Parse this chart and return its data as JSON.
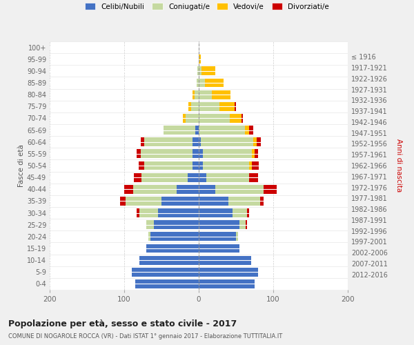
{
  "age_groups": [
    "0-4",
    "5-9",
    "10-14",
    "15-19",
    "20-24",
    "25-29",
    "30-34",
    "35-39",
    "40-44",
    "45-49",
    "50-54",
    "55-59",
    "60-64",
    "65-69",
    "70-74",
    "75-79",
    "80-84",
    "85-89",
    "90-94",
    "95-99",
    "100+"
  ],
  "birth_years": [
    "2012-2016",
    "2007-2011",
    "2002-2006",
    "1997-2001",
    "1992-1996",
    "1987-1991",
    "1982-1986",
    "1977-1981",
    "1972-1976",
    "1967-1971",
    "1962-1966",
    "1957-1961",
    "1952-1956",
    "1947-1951",
    "1942-1946",
    "1937-1941",
    "1932-1936",
    "1927-1931",
    "1922-1926",
    "1917-1921",
    "≤ 1916"
  ],
  "males": {
    "celibi": [
      85,
      90,
      80,
      70,
      65,
      60,
      55,
      50,
      30,
      15,
      8,
      8,
      8,
      5,
      0,
      0,
      0,
      0,
      0,
      0,
      0
    ],
    "coniugati": [
      0,
      0,
      0,
      0,
      3,
      10,
      25,
      48,
      58,
      62,
      65,
      70,
      65,
      42,
      18,
      10,
      6,
      3,
      2,
      0,
      0
    ],
    "vedovi": [
      0,
      0,
      0,
      0,
      0,
      0,
      0,
      0,
      0,
      0,
      0,
      0,
      0,
      0,
      3,
      4,
      2,
      0,
      0,
      0,
      0
    ],
    "divorziati": [
      0,
      0,
      0,
      0,
      0,
      0,
      3,
      8,
      12,
      10,
      8,
      5,
      5,
      0,
      0,
      0,
      0,
      0,
      0,
      0,
      0
    ]
  },
  "females": {
    "nubili": [
      75,
      80,
      70,
      55,
      50,
      55,
      45,
      40,
      22,
      10,
      6,
      6,
      3,
      0,
      0,
      0,
      0,
      0,
      0,
      0,
      0
    ],
    "coniugate": [
      0,
      0,
      0,
      0,
      3,
      8,
      20,
      42,
      65,
      58,
      62,
      65,
      70,
      62,
      42,
      28,
      18,
      8,
      4,
      0,
      0
    ],
    "vedove": [
      0,
      0,
      0,
      0,
      0,
      0,
      0,
      0,
      0,
      0,
      3,
      4,
      5,
      6,
      15,
      20,
      25,
      25,
      18,
      3,
      0
    ],
    "divorziate": [
      0,
      0,
      0,
      0,
      0,
      2,
      3,
      5,
      18,
      12,
      10,
      5,
      5,
      5,
      2,
      2,
      0,
      0,
      0,
      0,
      0
    ]
  },
  "colors": {
    "celibi": "#4472c4",
    "coniugati": "#c5d9a0",
    "vedovi": "#ffc000",
    "divorziati": "#cc0000"
  },
  "xlim": 200,
  "title": "Popolazione per età, sesso e stato civile - 2017",
  "subtitle": "COMUNE DI NOGAROLE ROCCA (VR) - Dati ISTAT 1° gennaio 2017 - Elaborazione TUTTITALIA.IT",
  "ylabel_left": "Fasce di età",
  "ylabel_right": "Anni di nascita",
  "legend_labels": [
    "Celibi/Nubili",
    "Coniugati/e",
    "Vedovi/e",
    "Divorziati/e"
  ],
  "bg_color": "#f0f0f0",
  "plot_bg": "#ffffff"
}
